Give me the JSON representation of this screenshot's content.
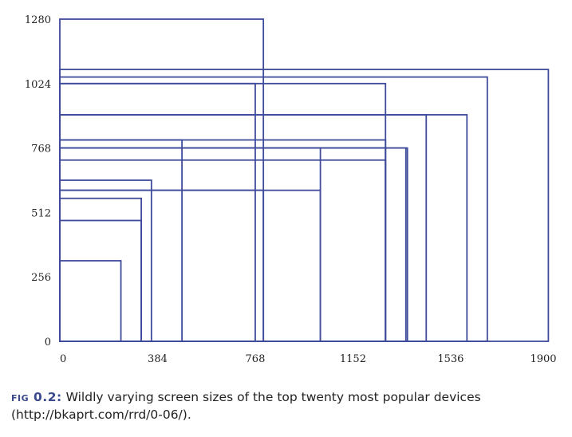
{
  "chart_data": {
    "type": "rectangles",
    "title": "",
    "xlabel": "",
    "ylabel": "",
    "xlim": [
      0,
      1900
    ],
    "ylim": [
      0,
      1280
    ],
    "x_ticks": [
      0,
      384,
      768,
      1152,
      1536,
      1900
    ],
    "y_ticks": [
      0,
      256,
      512,
      768,
      1024,
      1280
    ],
    "grid": false,
    "stroke_color": "#3f4b9b",
    "devices": [
      {
        "width": 240,
        "height": 320
      },
      {
        "width": 320,
        "height": 480
      },
      {
        "width": 320,
        "height": 568
      },
      {
        "width": 360,
        "height": 640
      },
      {
        "width": 480,
        "height": 800
      },
      {
        "width": 768,
        "height": 1024
      },
      {
        "width": 800,
        "height": 600
      },
      {
        "width": 800,
        "height": 1280
      },
      {
        "width": 1024,
        "height": 600
      },
      {
        "width": 1024,
        "height": 768
      },
      {
        "width": 1280,
        "height": 720
      },
      {
        "width": 1280,
        "height": 768
      },
      {
        "width": 1280,
        "height": 800
      },
      {
        "width": 1280,
        "height": 1024
      },
      {
        "width": 1360,
        "height": 768
      },
      {
        "width": 1366,
        "height": 768
      },
      {
        "width": 1440,
        "height": 900
      },
      {
        "width": 1600,
        "height": 900
      },
      {
        "width": 1680,
        "height": 1050
      },
      {
        "width": 1920,
        "height": 1080
      }
    ]
  },
  "caption": {
    "label": "fig 0.2:",
    "text": " Wildly varying screen sizes of the top twenty most popular devices (http://bkaprt.com/rrd/0-06/)."
  }
}
